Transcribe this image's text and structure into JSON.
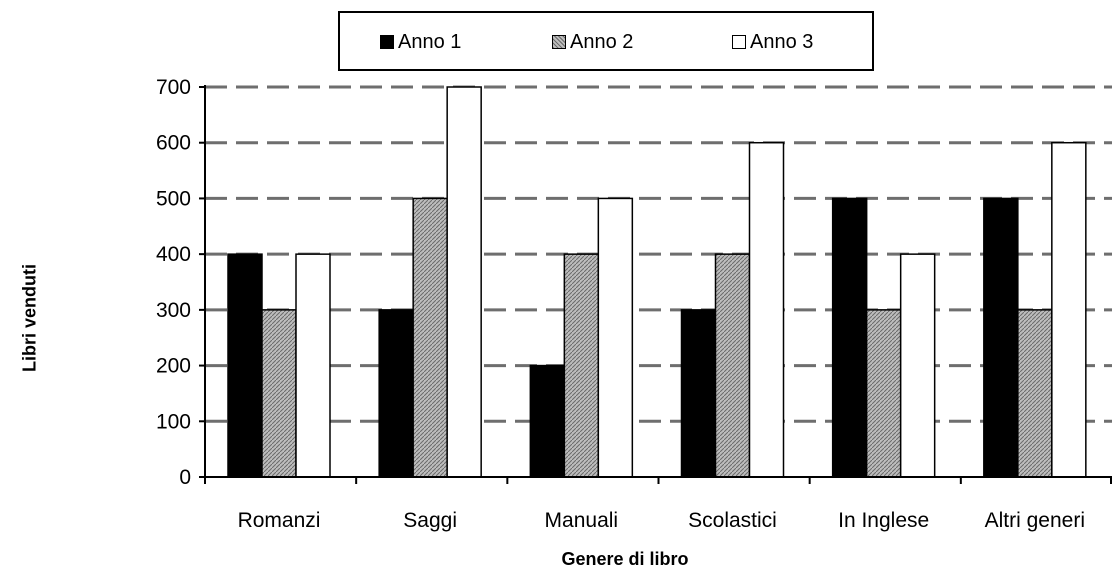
{
  "chart_data": {
    "type": "bar",
    "categories": [
      "Romanzi",
      "Saggi",
      "Manuali",
      "Scolastici",
      "In Inglese",
      "Altri generi"
    ],
    "series": [
      {
        "name": "Anno 1",
        "values": [
          400,
          300,
          200,
          300,
          500,
          500
        ],
        "color": "#000000",
        "pattern": "solid"
      },
      {
        "name": "Anno 2",
        "values": [
          300,
          500,
          400,
          400,
          300,
          300
        ],
        "color": "#a6a6a6",
        "pattern": "hatched"
      },
      {
        "name": "Anno 3",
        "values": [
          400,
          700,
          500,
          600,
          400,
          600
        ],
        "color": "#ffffff",
        "pattern": "solid"
      }
    ],
    "title": "",
    "xlabel": "Genere di libro",
    "ylabel": "Libri venduti",
    "ylim": [
      0,
      700
    ],
    "yticks": [
      0,
      100,
      200,
      300,
      400,
      500,
      600,
      700
    ],
    "grid": true,
    "grid_style": "dashed",
    "legend_position": "top"
  }
}
